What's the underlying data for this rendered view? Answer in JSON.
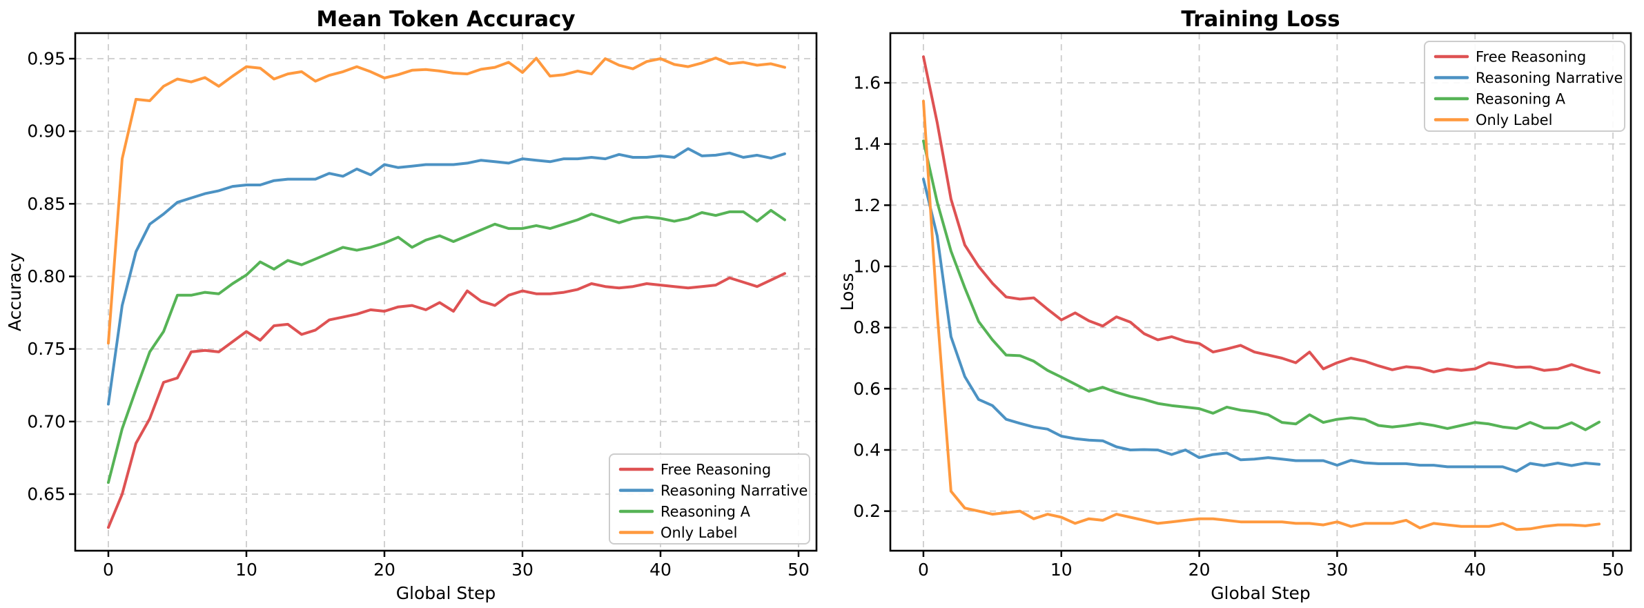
{
  "figure_background": "#ffffff",
  "chart_data": [
    {
      "id": "accuracy",
      "type": "line",
      "title": "Mean Token Accuracy",
      "xlabel": "Global Step",
      "ylabel": "Accuracy",
      "grid": true,
      "grid_color": "#cccccc",
      "legend_position": "lower right",
      "xlim": [
        -2.4,
        51.3
      ],
      "ylim": [
        0.611,
        0.9676
      ],
      "xticks": [
        0,
        10,
        20,
        30,
        40,
        50
      ],
      "xtick_labels": [
        "0",
        "10",
        "20",
        "30",
        "40",
        "50"
      ],
      "yticks": [
        0.65,
        0.7,
        0.75,
        0.8,
        0.85,
        0.9,
        0.95
      ],
      "ytick_labels": [
        "0.65",
        "0.70",
        "0.75",
        "0.80",
        "0.85",
        "0.90",
        "0.95"
      ],
      "x": "global step index 0-49",
      "series": [
        {
          "name": "Free Reasoning",
          "color": "#DE5253",
          "values": [
            0.627,
            0.65,
            0.685,
            0.702,
            0.727,
            0.73,
            0.748,
            0.749,
            0.748,
            0.755,
            0.762,
            0.756,
            0.766,
            0.767,
            0.76,
            0.763,
            0.77,
            0.772,
            0.774,
            0.777,
            0.776,
            0.779,
            0.78,
            0.777,
            0.782,
            0.776,
            0.79,
            0.783,
            0.78,
            0.787,
            0.79,
            0.788,
            0.788,
            0.789,
            0.791,
            0.795,
            0.793,
            0.792,
            0.793,
            0.795,
            0.794,
            0.793,
            0.792,
            0.793,
            0.794,
            0.799,
            0.796,
            0.793,
            0.7975,
            0.802
          ]
        },
        {
          "name": "Reasoning Narrative",
          "color": "#4C92C3",
          "values": [
            0.712,
            0.78,
            0.817,
            0.836,
            0.843,
            0.851,
            0.854,
            0.857,
            0.859,
            0.862,
            0.863,
            0.863,
            0.866,
            0.867,
            0.867,
            0.867,
            0.871,
            0.869,
            0.874,
            0.87,
            0.877,
            0.875,
            0.876,
            0.877,
            0.877,
            0.877,
            0.878,
            0.88,
            0.879,
            0.878,
            0.881,
            0.88,
            0.879,
            0.881,
            0.881,
            0.882,
            0.881,
            0.884,
            0.882,
            0.882,
            0.883,
            0.882,
            0.888,
            0.883,
            0.8835,
            0.885,
            0.882,
            0.8835,
            0.8815,
            0.8845
          ]
        },
        {
          "name": "Reasoning A",
          "color": "#56B356",
          "values": [
            0.658,
            0.695,
            0.722,
            0.748,
            0.762,
            0.787,
            0.787,
            0.789,
            0.788,
            0.795,
            0.801,
            0.81,
            0.805,
            0.811,
            0.808,
            0.812,
            0.816,
            0.82,
            0.818,
            0.82,
            0.823,
            0.827,
            0.82,
            0.825,
            0.828,
            0.824,
            0.828,
            0.832,
            0.836,
            0.833,
            0.833,
            0.835,
            0.833,
            0.836,
            0.839,
            0.843,
            0.84,
            0.837,
            0.84,
            0.841,
            0.84,
            0.838,
            0.84,
            0.844,
            0.842,
            0.8445,
            0.8445,
            0.838,
            0.8455,
            0.839
          ]
        },
        {
          "name": "Only Label",
          "color": "#FF993E",
          "values": [
            0.754,
            0.881,
            0.922,
            0.921,
            0.931,
            0.936,
            0.934,
            0.937,
            0.931,
            0.938,
            0.9445,
            0.9435,
            0.936,
            0.9395,
            0.941,
            0.9345,
            0.9385,
            0.941,
            0.9445,
            0.941,
            0.9367,
            0.939,
            0.942,
            0.9425,
            0.9415,
            0.94,
            0.9395,
            0.9427,
            0.944,
            0.9475,
            0.9405,
            0.9503,
            0.938,
            0.939,
            0.9415,
            0.9395,
            0.95,
            0.9455,
            0.943,
            0.948,
            0.95,
            0.946,
            0.9445,
            0.947,
            0.9505,
            0.9465,
            0.9475,
            0.9455,
            0.9465,
            0.944
          ]
        }
      ]
    },
    {
      "id": "loss",
      "type": "line",
      "title": "Training Loss",
      "xlabel": "Global Step",
      "ylabel": "Loss",
      "grid": true,
      "grid_color": "#cccccc",
      "legend_position": "upper right",
      "xlim": [
        -2.4,
        51.3
      ],
      "ylim": [
        0.0706,
        1.7624
      ],
      "xticks": [
        0,
        10,
        20,
        30,
        40,
        50
      ],
      "xtick_labels": [
        "0",
        "10",
        "20",
        "30",
        "40",
        "50"
      ],
      "yticks": [
        0.2,
        0.4,
        0.6,
        0.8,
        1.0,
        1.2,
        1.4,
        1.6
      ],
      "ytick_labels": [
        "0.2",
        "0.4",
        "0.6",
        "0.8",
        "1.0",
        "1.2",
        "1.4",
        "1.6"
      ],
      "x": "global step index 0-49",
      "series": [
        {
          "name": "Free Reasoning",
          "color": "#DE5253",
          "values": [
            1.685,
            1.47,
            1.22,
            1.07,
            1.0,
            0.945,
            0.9,
            0.893,
            0.897,
            0.86,
            0.825,
            0.848,
            0.822,
            0.805,
            0.835,
            0.818,
            0.78,
            0.76,
            0.77,
            0.755,
            0.748,
            0.72,
            0.73,
            0.742,
            0.72,
            0.71,
            0.7,
            0.685,
            0.72,
            0.665,
            0.685,
            0.7,
            0.69,
            0.675,
            0.662,
            0.672,
            0.668,
            0.655,
            0.665,
            0.66,
            0.665,
            0.685,
            0.678,
            0.67,
            0.6715,
            0.66,
            0.664,
            0.679,
            0.664,
            0.6525
          ]
        },
        {
          "name": "Reasoning Narrative",
          "color": "#4C92C3",
          "values": [
            1.285,
            1.1,
            0.77,
            0.64,
            0.565,
            0.545,
            0.5,
            0.487,
            0.475,
            0.468,
            0.445,
            0.437,
            0.432,
            0.43,
            0.41,
            0.4,
            0.401,
            0.4,
            0.385,
            0.4,
            0.375,
            0.385,
            0.39,
            0.368,
            0.37,
            0.375,
            0.37,
            0.365,
            0.365,
            0.365,
            0.35,
            0.366,
            0.358,
            0.355,
            0.355,
            0.355,
            0.35,
            0.35,
            0.345,
            0.345,
            0.345,
            0.345,
            0.345,
            0.33,
            0.356,
            0.349,
            0.357,
            0.349,
            0.357,
            0.353
          ]
        },
        {
          "name": "Reasoning A",
          "color": "#56B356",
          "values": [
            1.41,
            1.21,
            1.05,
            0.93,
            0.82,
            0.76,
            0.71,
            0.708,
            0.69,
            0.66,
            0.638,
            0.615,
            0.592,
            0.605,
            0.588,
            0.575,
            0.565,
            0.552,
            0.545,
            0.54,
            0.535,
            0.52,
            0.54,
            0.53,
            0.525,
            0.515,
            0.49,
            0.485,
            0.515,
            0.49,
            0.5,
            0.505,
            0.5,
            0.48,
            0.475,
            0.48,
            0.487,
            0.48,
            0.47,
            0.48,
            0.49,
            0.485,
            0.475,
            0.47,
            0.49,
            0.472,
            0.472,
            0.489,
            0.466,
            0.491
          ]
        },
        {
          "name": "Only Label",
          "color": "#FF993E",
          "values": [
            1.54,
            0.85,
            0.265,
            0.21,
            0.2,
            0.19,
            0.195,
            0.2,
            0.175,
            0.19,
            0.18,
            0.16,
            0.175,
            0.17,
            0.19,
            0.18,
            0.17,
            0.16,
            0.165,
            0.17,
            0.175,
            0.175,
            0.17,
            0.165,
            0.165,
            0.165,
            0.165,
            0.16,
            0.16,
            0.155,
            0.165,
            0.15,
            0.16,
            0.16,
            0.16,
            0.17,
            0.145,
            0.16,
            0.155,
            0.15,
            0.15,
            0.15,
            0.16,
            0.14,
            0.142,
            0.15,
            0.155,
            0.155,
            0.152,
            0.158
          ]
        }
      ]
    }
  ]
}
